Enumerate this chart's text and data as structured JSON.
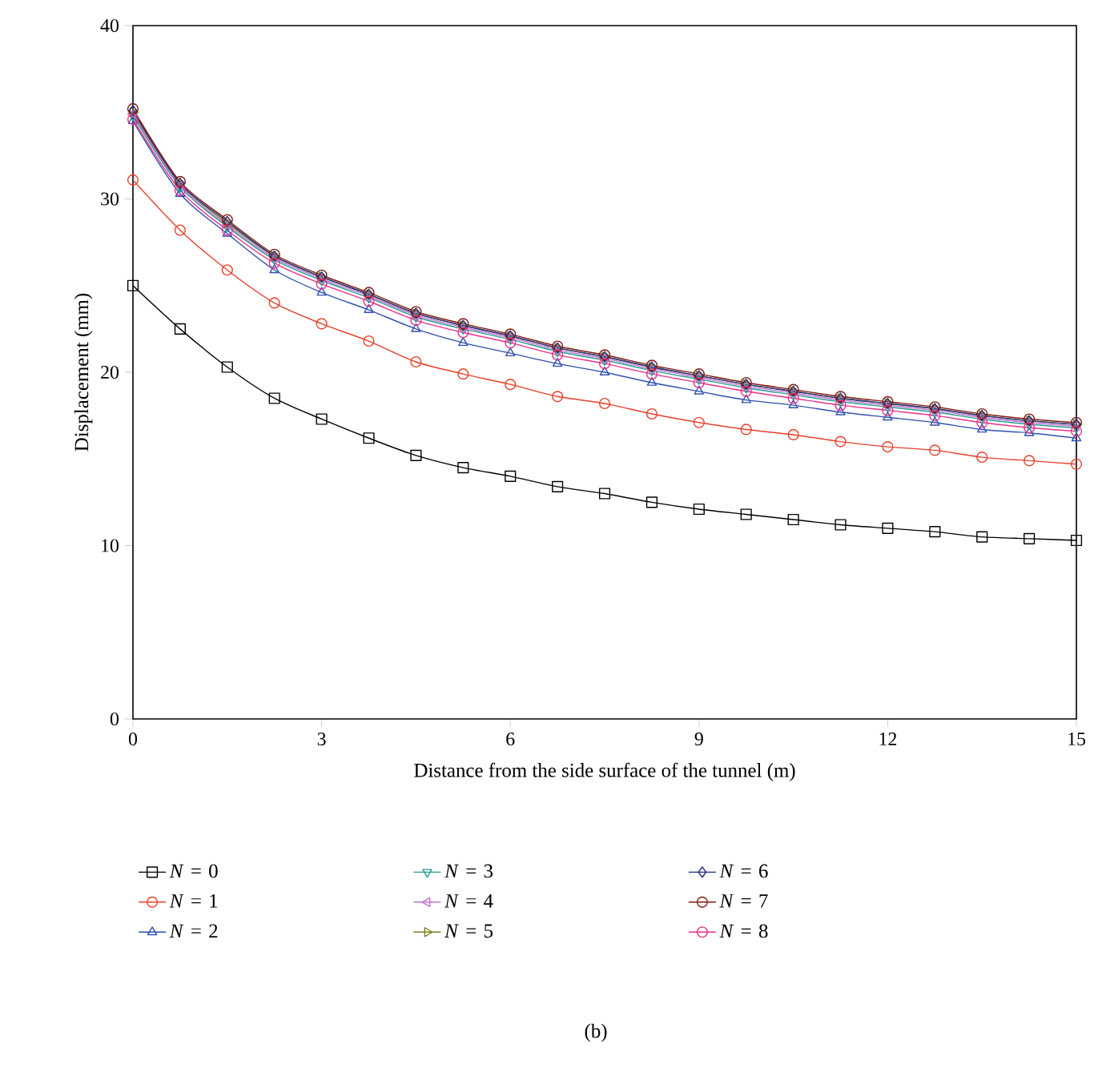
{
  "chart_data": {
    "type": "line",
    "xlabel": "Distance from the side surface of the tunnel (m)",
    "ylabel": "Displacement (mm)",
    "x": [
      0,
      0.75,
      1.5,
      2.25,
      3,
      3.75,
      4.5,
      5.25,
      6,
      6.75,
      7.5,
      8.25,
      9,
      9.75,
      10.5,
      11.25,
      12,
      12.75,
      13.5,
      14.25,
      15
    ],
    "xlim": [
      0,
      15
    ],
    "xticks": [
      0,
      3,
      6,
      9,
      12,
      15
    ],
    "ylim": [
      0,
      40
    ],
    "yticks": [
      0,
      10,
      20,
      30,
      40
    ],
    "legend": "bottom",
    "annotations": [
      "(b)"
    ],
    "series": [
      {
        "name": "*N* = 0",
        "color": "#000000",
        "marker": "square",
        "values": [
          25.0,
          22.5,
          20.3,
          18.5,
          17.3,
          16.2,
          15.2,
          14.5,
          14.0,
          13.4,
          13.0,
          12.5,
          12.1,
          11.8,
          11.5,
          11.2,
          11.0,
          10.8,
          10.5,
          10.4,
          10.3
        ]
      },
      {
        "name": "*N* = 1",
        "color": "#e8402a",
        "marker": "circle",
        "values": [
          31.1,
          28.2,
          25.9,
          24.0,
          22.8,
          21.8,
          20.6,
          19.9,
          19.3,
          18.6,
          18.2,
          17.6,
          17.1,
          16.7,
          16.4,
          16.0,
          15.7,
          15.5,
          15.1,
          14.9,
          14.7
        ]
      },
      {
        "name": "*N* = 2",
        "color": "#3050b0",
        "marker": "triangle",
        "values": [
          34.5,
          30.3,
          28.0,
          25.9,
          24.6,
          23.6,
          22.5,
          21.7,
          21.1,
          20.5,
          20.0,
          19.4,
          18.9,
          18.4,
          18.1,
          17.7,
          17.4,
          17.1,
          16.7,
          16.5,
          16.2
        ]
      },
      {
        "name": "*N* = 3",
        "color": "#2a9a90",
        "marker": "triangle-down",
        "values": [
          34.8,
          30.7,
          28.4,
          26.5,
          25.3,
          24.3,
          23.2,
          22.5,
          21.9,
          21.2,
          20.7,
          20.1,
          19.6,
          19.1,
          18.7,
          18.3,
          18.0,
          17.7,
          17.3,
          17.0,
          16.8
        ]
      },
      {
        "name": "*N* = 4",
        "color": "#c070d0",
        "marker": "triangle-left",
        "values": [
          34.9,
          30.8,
          28.5,
          26.6,
          25.4,
          24.4,
          23.3,
          22.6,
          22.0,
          21.3,
          20.8,
          20.2,
          19.7,
          19.2,
          18.8,
          18.4,
          18.1,
          17.8,
          17.4,
          17.1,
          16.9
        ]
      },
      {
        "name": "*N* = 5",
        "color": "#808020",
        "marker": "triangle-right",
        "values": [
          35.0,
          30.9,
          28.6,
          26.7,
          25.5,
          24.5,
          23.4,
          22.7,
          22.1,
          21.4,
          20.9,
          20.3,
          19.8,
          19.3,
          18.9,
          18.5,
          18.2,
          17.9,
          17.5,
          17.2,
          17.0
        ]
      },
      {
        "name": "*N* = 6",
        "color": "#202a80",
        "marker": "diamond",
        "values": [
          35.1,
          30.9,
          28.7,
          26.7,
          25.5,
          24.5,
          23.4,
          22.7,
          22.1,
          21.4,
          20.9,
          20.3,
          19.8,
          19.3,
          18.9,
          18.5,
          18.2,
          17.9,
          17.5,
          17.2,
          17.0
        ]
      },
      {
        "name": "*N* = 7",
        "color": "#801a10",
        "marker": "circle",
        "values": [
          35.2,
          31.0,
          28.8,
          26.8,
          25.6,
          24.6,
          23.5,
          22.8,
          22.2,
          21.5,
          21.0,
          20.4,
          19.9,
          19.4,
          19.0,
          18.6,
          18.3,
          18.0,
          17.6,
          17.3,
          17.1
        ]
      },
      {
        "name": "*N* = 8",
        "color": "#e8308a",
        "marker": "circle",
        "values": [
          34.6,
          30.5,
          28.2,
          26.3,
          25.1,
          24.1,
          23.0,
          22.3,
          21.7,
          21.0,
          20.5,
          19.9,
          19.4,
          18.9,
          18.5,
          18.1,
          17.8,
          17.5,
          17.1,
          16.8,
          16.6
        ]
      }
    ]
  }
}
